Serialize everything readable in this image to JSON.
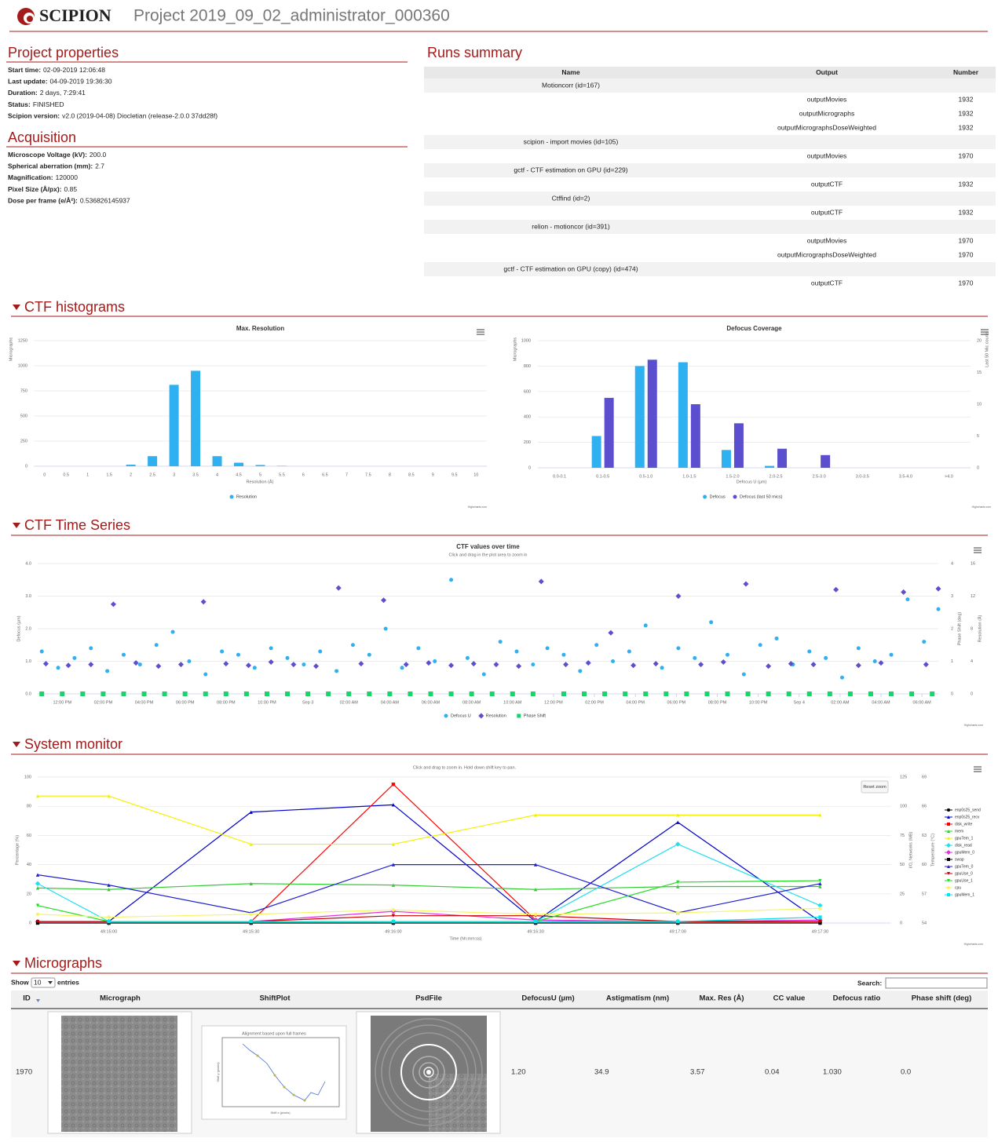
{
  "header": {
    "logo": "SCIPION",
    "title": "Project 2019_09_02_administrator_000360"
  },
  "project_properties": {
    "title": "Project properties",
    "items": [
      {
        "label": "Start time:",
        "value": "02-09-2019 12:06:48"
      },
      {
        "label": "Last update:",
        "value": "04-09-2019 19:36:30"
      },
      {
        "label": "Duration:",
        "value": "2 days, 7:29:41"
      },
      {
        "label": "Status:",
        "value": "FINISHED"
      },
      {
        "label": "Scipion version:",
        "value": "v2.0 (2019-04-08) Diocletian (release-2.0.0 37dd28f)"
      }
    ]
  },
  "acquisition": {
    "title": "Acquisition",
    "items": [
      {
        "label": "Microscope Voltage (kV):",
        "value": "200.0"
      },
      {
        "label": "Spherical aberration (mm):",
        "value": "2.7"
      },
      {
        "label": "Magnification:",
        "value": "120000"
      },
      {
        "label": "Pixel Size (Å/px):",
        "value": "0.85"
      },
      {
        "label": "Dose per frame (e/Å²):",
        "value": "0.536826145937"
      }
    ]
  },
  "runs_summary": {
    "title": "Runs summary",
    "columns": [
      "Name",
      "Output",
      "Number"
    ],
    "runs": [
      {
        "name": "Motioncorr (id=167)",
        "outputs": [
          {
            "name": "outputMovies",
            "number": 1932
          },
          {
            "name": "outputMicrographs",
            "number": 1932
          },
          {
            "name": "outputMicrographsDoseWeighted",
            "number": 1932
          }
        ]
      },
      {
        "name": "scipion - import movies (id=105)",
        "outputs": [
          {
            "name": "outputMovies",
            "number": 1970
          }
        ]
      },
      {
        "name": "gctf - CTF estimation on GPU (id=229)",
        "outputs": [
          {
            "name": "outputCTF",
            "number": 1932
          }
        ]
      },
      {
        "name": "Ctffind (id=2)",
        "outputs": [
          {
            "name": "outputCTF",
            "number": 1932
          }
        ]
      },
      {
        "name": "relion - motioncor (id=391)",
        "outputs": [
          {
            "name": "outputMovies",
            "number": 1970
          },
          {
            "name": "outputMicrographsDoseWeighted",
            "number": 1970
          }
        ]
      },
      {
        "name": "gctf - CTF estimation on GPU (copy) (id=474)",
        "outputs": [
          {
            "name": "outputCTF",
            "number": 1970
          }
        ]
      }
    ]
  },
  "ctf_histograms": {
    "title": "CTF histograms",
    "charts": [
      {
        "type": "bar",
        "title": "Max. Resolution",
        "y_label": "Micrographs",
        "x_label": "Resolution (Å)",
        "categories": [
          "0",
          "0.5",
          "1",
          "1.5",
          "2",
          "2.5",
          "3",
          "3.5",
          "4",
          "4.5",
          "5",
          "5.5",
          "6",
          "6.5",
          "7",
          "7.5",
          "8",
          "8.5",
          "9",
          "9.5",
          "10"
        ],
        "series": [
          {
            "name": "Resolution",
            "color": "#2fb0f0",
            "values": [
              0,
              0,
              0,
              0,
              15,
              100,
              810,
              950,
              100,
              35,
              12,
              3,
              0,
              0,
              0,
              0,
              0,
              0,
              0,
              0,
              0
            ]
          }
        ],
        "ylim": [
          0,
          1250
        ],
        "yticks": [
          0,
          250,
          500,
          750,
          1000,
          1250
        ],
        "grid": true,
        "credit": "Highcharts.com"
      },
      {
        "type": "bar",
        "title": "Defocus Coverage",
        "y_label": "Micrographs",
        "y2_label": "Last 50 Mic counts",
        "x_label": "Defocus U (µm)",
        "categories": [
          "0.0-0.1",
          "0.1-0.5",
          "0.5-1.0",
          "1.0-1.5",
          "1.5-2.0",
          "2.0-2.5",
          "2.5-3.0",
          "3.0-3.5",
          "3.5-4.0",
          ">4.0"
        ],
        "series": [
          {
            "name": "Defocus",
            "color": "#2fb0f0",
            "values": [
              0,
              250,
              800,
              830,
              140,
              15,
              0,
              0,
              0,
              0
            ]
          },
          {
            "name": "Defocus (last 50 mics)",
            "color": "#5b4fcf",
            "axis": "y2",
            "values": [
              0,
              11,
              17,
              10,
              7,
              3,
              2,
              0,
              0,
              0
            ]
          }
        ],
        "ylim": [
          0,
          1000
        ],
        "yticks": [
          0,
          200,
          400,
          600,
          800,
          1000
        ],
        "y2lim": [
          0,
          20
        ],
        "y2ticks": [
          0,
          5,
          10,
          15,
          20
        ],
        "grid": true,
        "credit": "Highcharts.com"
      }
    ]
  },
  "ctf_time_series": {
    "title": "CTF Time Series",
    "chart": {
      "type": "scatter",
      "title": "CTF values over time",
      "subtitle": "Click and drag in the plot area to zoom in",
      "y_label": "Defocus (µm)",
      "y2_label": "Phase Shift (deg)",
      "y3_label": "Resolution (Å)",
      "xlim": [
        10.8,
        54.8
      ],
      "xticks": [
        {
          "value": 12,
          "label": "12:00 PM"
        },
        {
          "value": 14,
          "label": "02:00 PM"
        },
        {
          "value": 16,
          "label": "04:00 PM"
        },
        {
          "value": 18,
          "label": "06:00 PM"
        },
        {
          "value": 20,
          "label": "08:00 PM"
        },
        {
          "value": 22,
          "label": "10:00 PM"
        },
        {
          "value": 24,
          "label": "Sep 3"
        },
        {
          "value": 26,
          "label": "02:00 AM"
        },
        {
          "value": 28,
          "label": "04:00 AM"
        },
        {
          "value": 30,
          "label": "06:00 AM"
        },
        {
          "value": 32,
          "label": "08:00 AM"
        },
        {
          "value": 34,
          "label": "10:00 AM"
        },
        {
          "value": 36,
          "label": "12:00 PM"
        },
        {
          "value": 38,
          "label": "02:00 PM"
        },
        {
          "value": 40,
          "label": "04:00 PM"
        },
        {
          "value": 42,
          "label": "06:00 PM"
        },
        {
          "value": 44,
          "label": "08:00 PM"
        },
        {
          "value": 46,
          "label": "10:00 PM"
        },
        {
          "value": 48,
          "label": "Sep 4"
        },
        {
          "value": 50,
          "label": "02:00 AM"
        },
        {
          "value": 52,
          "label": "04:00 AM"
        },
        {
          "value": 54,
          "label": "06:00 AM"
        }
      ],
      "ylim": [
        0,
        4
      ],
      "yticks": [
        {
          "value": 0,
          "label": "0.0"
        },
        {
          "value": 1,
          "label": "1.0"
        },
        {
          "value": 2,
          "label": "2.0"
        },
        {
          "value": 3,
          "label": "3.0"
        },
        {
          "value": 4,
          "label": "4.0"
        }
      ],
      "y2lim": [
        0,
        4
      ],
      "y2ticks": [
        0,
        1,
        2,
        3,
        4
      ],
      "y3lim": [
        0,
        16
      ],
      "y3ticks": [
        0,
        4,
        8,
        12,
        16
      ],
      "grid": true,
      "credit": "Highcharts.com",
      "series": [
        {
          "name": "Defocus U",
          "color": "#2fb0f0",
          "marker": "circle",
          "x": [
            11,
            11.8,
            12.6,
            13.4,
            14.2,
            15,
            15.8,
            16.6,
            17.4,
            18.2,
            19,
            19.8,
            20.6,
            21.4,
            22.2,
            23,
            23.8,
            24.6,
            25.4,
            26.2,
            27,
            27.8,
            28.6,
            29.4,
            30.2,
            31,
            31.8,
            32.6,
            33.4,
            34.2,
            35,
            35.7,
            36.5,
            37.3,
            38.1,
            38.9,
            39.7,
            40.5,
            41.3,
            42.1,
            42.9,
            43.7,
            44.5,
            45.3,
            46.1,
            46.9,
            47.7,
            48.5,
            49.3,
            50.1,
            50.9,
            51.7,
            52.5,
            53.3,
            54.1,
            54.8
          ],
          "values": [
            1.3,
            0.8,
            1.1,
            1.4,
            0.7,
            1.2,
            0.9,
            1.5,
            1.9,
            1.0,
            0.6,
            1.3,
            1.2,
            0.8,
            1.4,
            1.1,
            0.9,
            1.3,
            0.7,
            1.5,
            1.2,
            2.0,
            0.8,
            1.4,
            1.0,
            3.5,
            1.1,
            0.6,
            1.6,
            1.3,
            0.9,
            1.4,
            1.2,
            0.7,
            1.5,
            1.0,
            1.3,
            2.1,
            0.8,
            1.4,
            1.1,
            2.2,
            1.2,
            0.6,
            1.5,
            1.7,
            0.9,
            1.3,
            1.1,
            0.5,
            1.4,
            1.0,
            1.2,
            2.9,
            1.6,
            2.6
          ]
        },
        {
          "name": "Resolution",
          "color": "#5b4fcf",
          "marker": "diamond",
          "axis": "y3",
          "x": [
            11.2,
            12.3,
            13.4,
            14.5,
            15.6,
            16.7,
            17.8,
            18.9,
            20,
            21.1,
            22.2,
            23.3,
            24.4,
            25.5,
            26.6,
            27.7,
            28.8,
            29.9,
            31,
            32.1,
            33.2,
            34.3,
            35.4,
            36.6,
            37.7,
            38.8,
            39.9,
            41,
            42.1,
            43.2,
            44.3,
            45.4,
            46.5,
            47.6,
            48.7,
            49.8,
            50.9,
            52,
            53.1,
            54.2,
            54.8
          ],
          "values": [
            3.7,
            3.5,
            3.6,
            11,
            3.8,
            3.4,
            3.6,
            11.3,
            3.7,
            3.5,
            3.9,
            3.6,
            3.4,
            13,
            3.7,
            11.5,
            3.6,
            3.8,
            3.5,
            3.7,
            3.6,
            3.4,
            13.8,
            3.6,
            3.8,
            7.5,
            3.5,
            3.7,
            12,
            3.6,
            3.9,
            13.5,
            3.4,
            3.7,
            3.6,
            12.8,
            3.5,
            3.8,
            12.5,
            3.6,
            12.9
          ]
        },
        {
          "name": "Phase Shift",
          "color": "#19d36b",
          "marker": "square",
          "axis": "y2",
          "x": [
            11,
            12,
            13,
            14,
            15,
            16,
            17,
            18,
            19,
            20,
            21,
            22,
            23,
            24,
            25,
            26,
            27,
            28,
            29,
            30,
            31,
            32,
            33,
            34,
            35,
            36.5,
            37.5,
            38.5,
            39.5,
            40.5,
            41.5,
            42.5,
            43.5,
            44.5,
            45.5,
            46.5,
            47.5,
            48.5,
            49.5,
            50.5,
            51.5,
            52.5,
            53.5,
            54.5
          ],
          "values": [
            0,
            0,
            0,
            0,
            0,
            0,
            0,
            0,
            0,
            0,
            0,
            0,
            0,
            0,
            0,
            0,
            0,
            0,
            0,
            0,
            0,
            0,
            0,
            0,
            0,
            0,
            0,
            0,
            0,
            0,
            0,
            0,
            0,
            0,
            0,
            0,
            0,
            0,
            0,
            0,
            0,
            0,
            0,
            0
          ]
        }
      ]
    }
  },
  "system_monitor": {
    "title": "System monitor",
    "chart": {
      "type": "line",
      "subtitle": "Click and drag to zoom in. Hold down shift key to pan.",
      "reset_zoom": "Reset zoom",
      "x_label": "Time (hh:mm:ss)",
      "y_label": "Percentage (%)",
      "y2_label": "I/O, Networks (MB)",
      "y3_label": "Temperature (°C)",
      "credit": "Highcharts.com",
      "xlim": [
        -15,
        165
      ],
      "xticks": [
        {
          "value": 0,
          "label": "49:15:00"
        },
        {
          "value": 30,
          "label": "49:15:30"
        },
        {
          "value": 60,
          "label": "49:16:00"
        },
        {
          "value": 90,
          "label": "49:16:30"
        },
        {
          "value": 120,
          "label": "49:17:00"
        },
        {
          "value": 150,
          "label": "49:17:30"
        }
      ],
      "ylim": [
        0,
        100
      ],
      "yticks": [
        0,
        20,
        40,
        60,
        80,
        100
      ],
      "y2lim": [
        0,
        125
      ],
      "y2ticks": [
        0,
        25,
        50,
        75,
        100,
        125
      ],
      "y3lim": [
        54,
        69
      ],
      "y3ticks": [
        54,
        57,
        60,
        63,
        66,
        69
      ],
      "grid": true,
      "legend": "right",
      "x": [
        -15,
        0,
        30,
        60,
        90,
        120,
        150
      ],
      "series": [
        {
          "name": "enp0s25_send",
          "color": "#000000",
          "marker": "circle",
          "values": [
            1,
            1,
            1,
            1,
            1,
            1,
            1
          ]
        },
        {
          "name": "enp0s25_recv",
          "color": "#0000cc",
          "marker": "triangle",
          "values": [
            null,
            1,
            76,
            81,
            1,
            69,
            1
          ]
        },
        {
          "name": "disk_write",
          "color": "#ff0000",
          "marker": "square",
          "values": [
            null,
            1,
            1,
            95,
            2,
            1,
            1
          ]
        },
        {
          "name": "mem",
          "color": "#33cc33",
          "marker": "triangle",
          "values": [
            24,
            23,
            27,
            26,
            23,
            25,
            25
          ]
        },
        {
          "name": "gpuTem_1",
          "color": "#f2f200",
          "marker": "triangle",
          "values": [
            87,
            87,
            54,
            54,
            74,
            74,
            74
          ]
        },
        {
          "name": "disk_read",
          "color": "#22e0ee",
          "marker": "diamond",
          "values": [
            27,
            1,
            1,
            1,
            1,
            54,
            12
          ]
        },
        {
          "name": "gpuMem_0",
          "color": "#e030e0",
          "marker": "diamond",
          "values": [
            1,
            1,
            1,
            8,
            2,
            1,
            2
          ]
        },
        {
          "name": "swap",
          "color": "#000000",
          "marker": "square",
          "values": [
            0,
            0,
            0,
            0,
            0,
            0,
            0
          ]
        },
        {
          "name": "gpuTem_0",
          "color": "#2020d0",
          "marker": "triangle",
          "values": [
            33,
            26,
            7,
            40,
            40,
            7,
            27
          ]
        },
        {
          "name": "gpuUse_0",
          "color": "#cc0000",
          "marker": "triangle-down",
          "values": [
            1,
            1,
            1,
            5,
            5,
            1,
            1
          ]
        },
        {
          "name": "gpuUse_1",
          "color": "#22dd22",
          "marker": "triangle-down",
          "values": [
            12,
            1,
            1,
            1,
            1,
            28,
            29
          ]
        },
        {
          "name": "cpu",
          "color": "#f5f566",
          "marker": "circle",
          "values": [
            6,
            4,
            6,
            9,
            6,
            7,
            10
          ]
        },
        {
          "name": "gpuMem_1",
          "color": "#00e5ee",
          "marker": "square",
          "values": [
            null,
            1,
            1,
            1,
            1,
            1,
            4
          ]
        }
      ]
    }
  },
  "micrographs": {
    "title": "Micrographs",
    "show": "Show",
    "page_length": "10",
    "entries": "entries",
    "search": "Search:",
    "columns": [
      "ID",
      "Micrograph",
      "ShiftPlot",
      "PsdFile",
      "DefocusU (µm)",
      "Astigmatism (nm)",
      "Max. Res (Å)",
      "CC value",
      "Defocus ratio",
      "Phase shift (deg)"
    ],
    "shift_plot": {
      "title": "Alignment based upon full frames",
      "x_label": "Shift x (pixels)",
      "y_label": "Shift y (pixels)"
    },
    "rows": [
      {
        "id": "1970",
        "defocus_u": "1.20",
        "astigmatism": "34.9",
        "max_res": "3.57",
        "cc_value": "0.04",
        "defocus_ratio": "1.030",
        "phase_shift": "0.0"
      }
    ]
  }
}
